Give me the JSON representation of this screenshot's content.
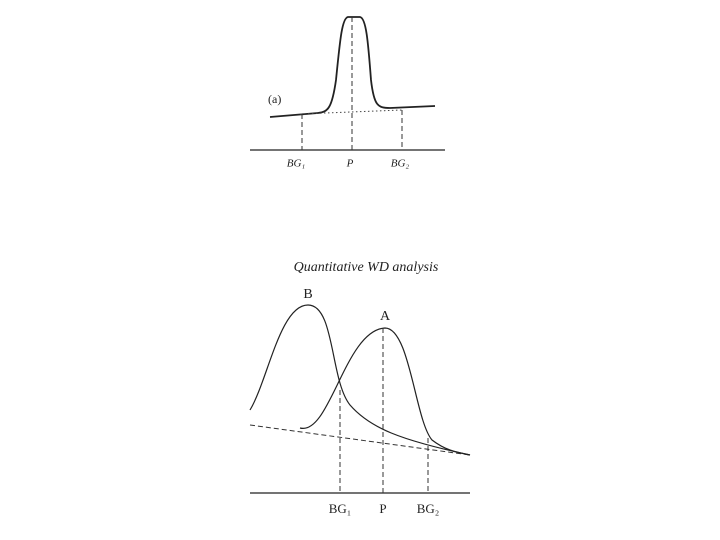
{
  "panel_a": {
    "label": "(a)",
    "axis_labels": [
      "BG₁",
      "P",
      "BG₂"
    ]
  },
  "panel_b": {
    "title": "Quantitative WD analysis",
    "curve_labels": [
      "B",
      "A"
    ],
    "axis_labels": [
      "BG₁",
      "P",
      "BG₂"
    ]
  }
}
